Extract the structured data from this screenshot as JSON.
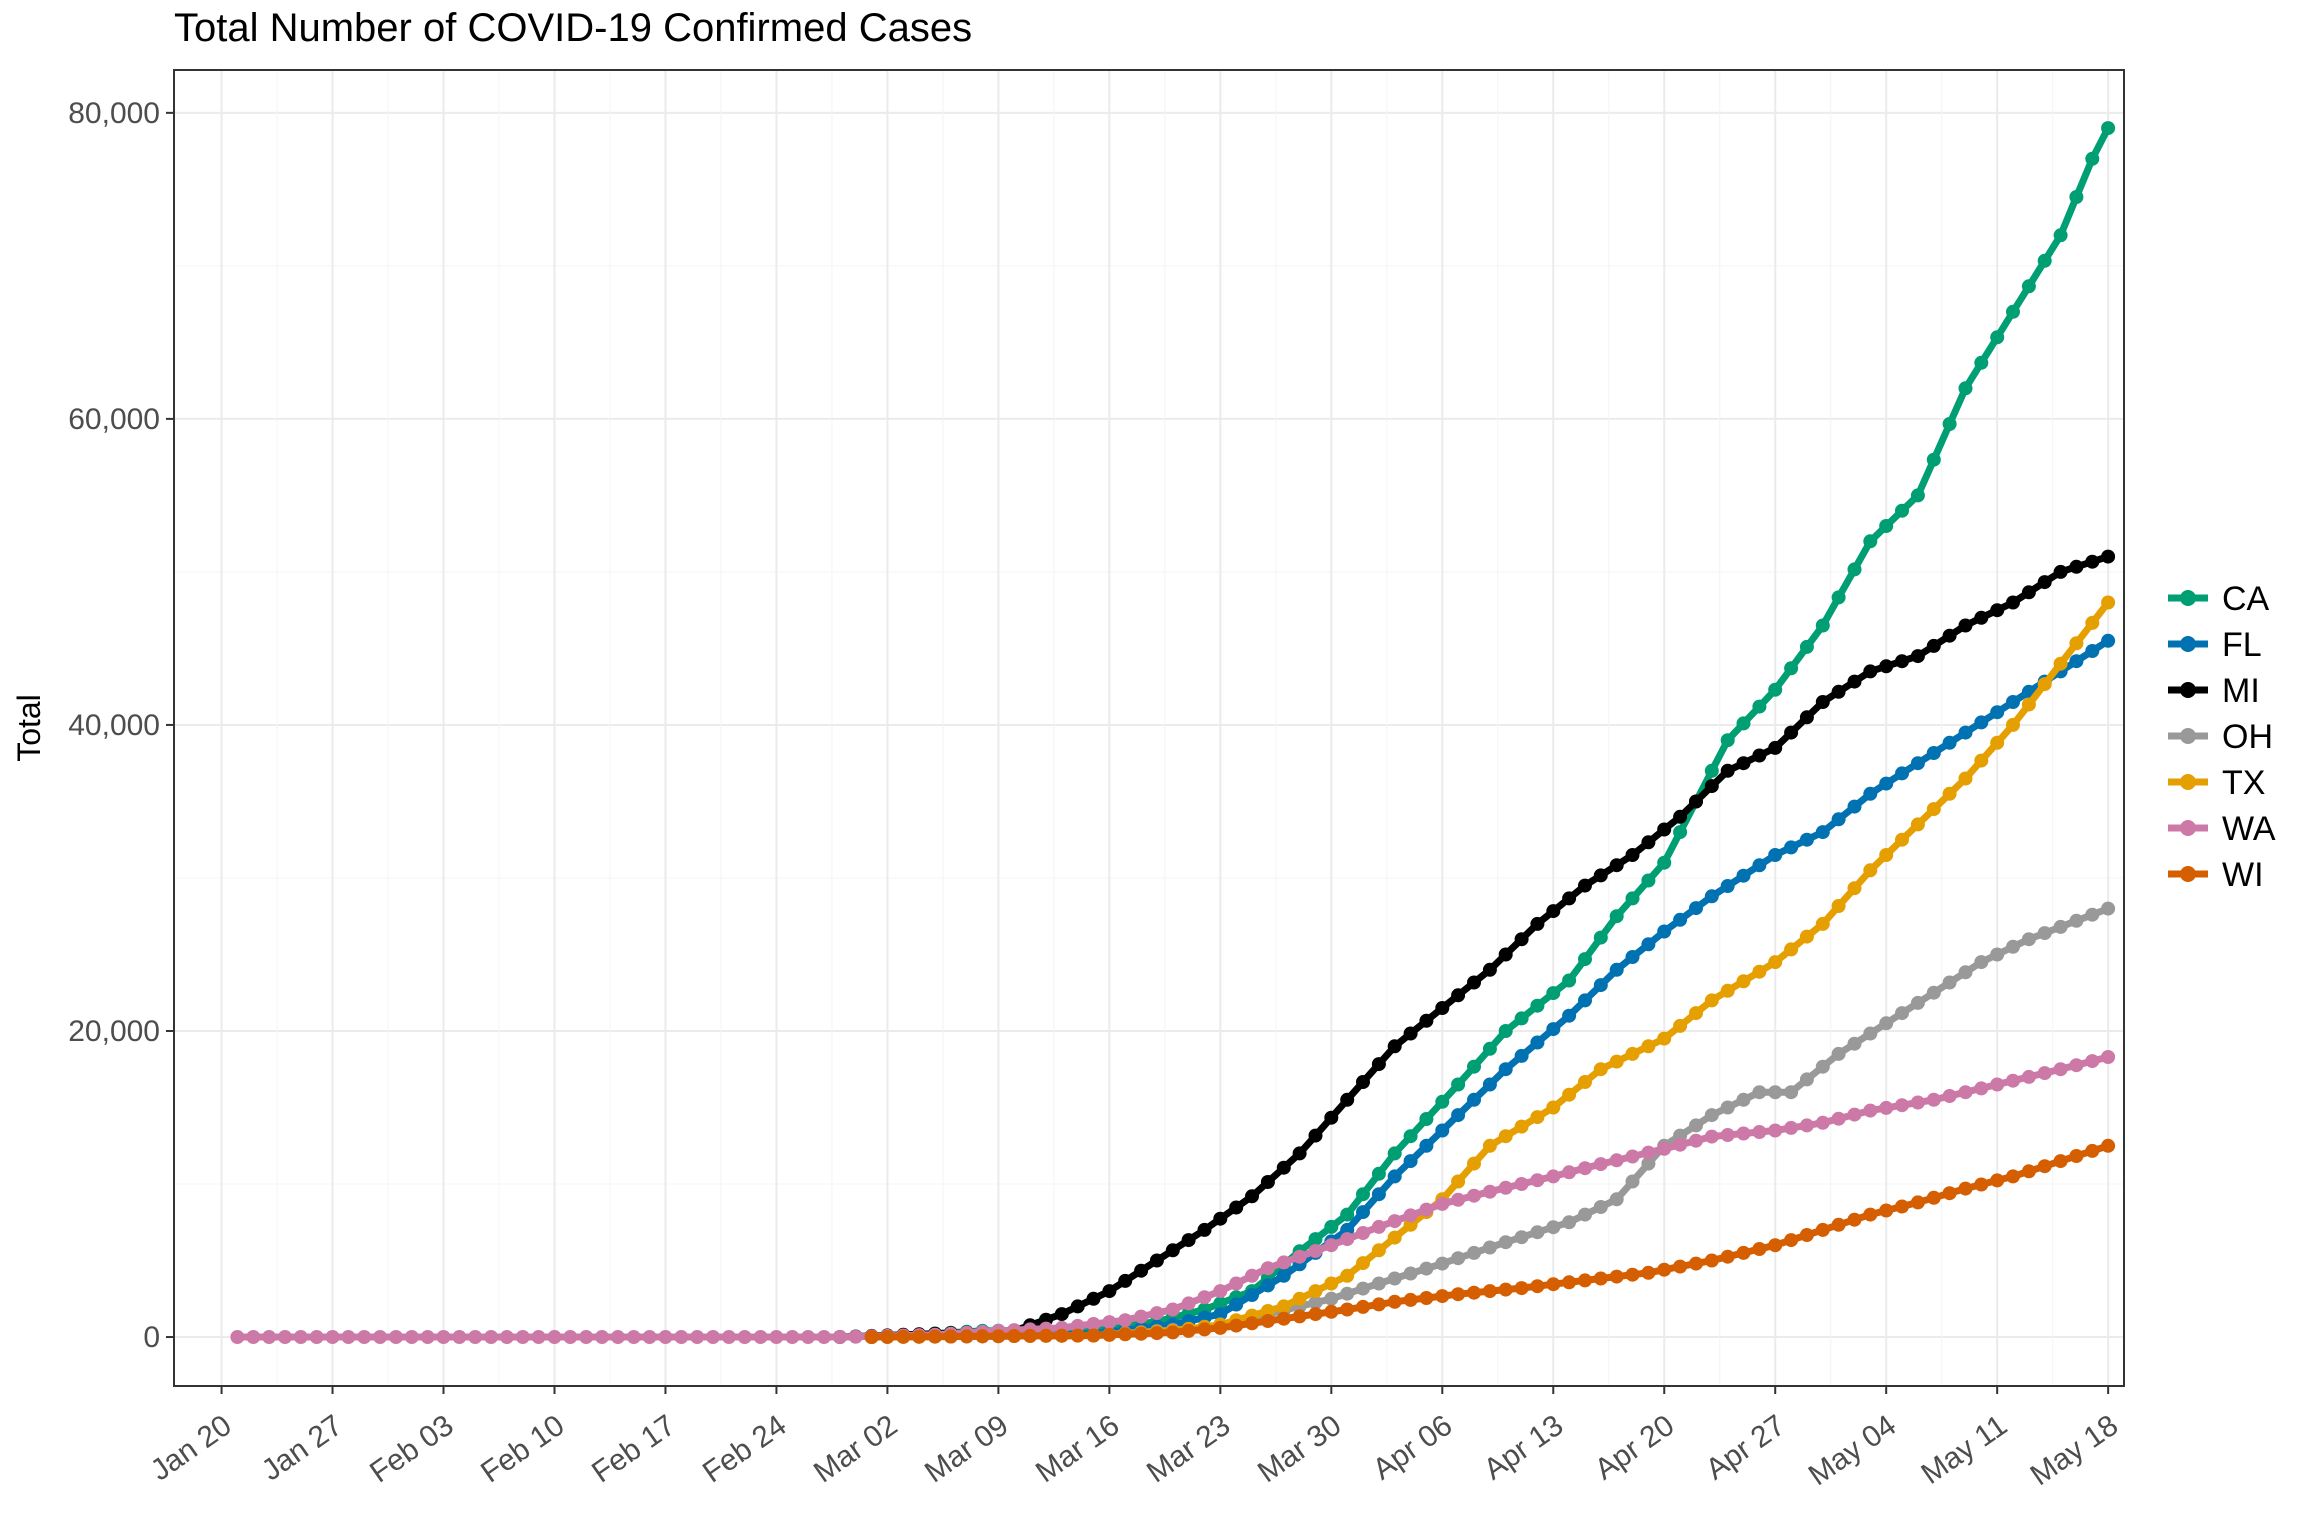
{
  "chart_data": {
    "type": "line",
    "title": "Total Number of COVID-19 Confirmed Cases",
    "xlabel": "",
    "ylabel": "Total",
    "x_type": "date",
    "xlim": [
      "2020-01-17",
      "2020-05-19"
    ],
    "ylim": [
      -3200,
      82800
    ],
    "y_ticks": [
      0,
      20000,
      40000,
      60000,
      80000
    ],
    "y_tick_labels": [
      "0",
      "20,000",
      "40,000",
      "60,000",
      "80,000"
    ],
    "x_ticks": [
      "2020-01-20",
      "2020-01-27",
      "2020-02-03",
      "2020-02-10",
      "2020-02-17",
      "2020-02-24",
      "2020-03-02",
      "2020-03-09",
      "2020-03-16",
      "2020-03-23",
      "2020-03-30",
      "2020-04-06",
      "2020-04-13",
      "2020-04-20",
      "2020-04-27",
      "2020-05-04",
      "2020-05-11",
      "2020-05-18"
    ],
    "x_tick_labels": [
      "Jan 20",
      "Jan 27",
      "Feb 03",
      "Feb 10",
      "Feb 17",
      "Feb 24",
      "Mar 02",
      "Mar 09",
      "Mar 16",
      "Mar 23",
      "Mar 30",
      "Apr 06",
      "Apr 13",
      "Apr 20",
      "Apr 27",
      "May 04",
      "May 11",
      "May 18"
    ],
    "grid": true,
    "legend_position": "right",
    "series": [
      {
        "name": "CA",
        "color": "#009E73",
        "points": [
          [
            "2020-03-01",
            0
          ],
          [
            "2020-03-08",
            400
          ],
          [
            "2020-03-15",
            500
          ],
          [
            "2020-03-19",
            1000
          ],
          [
            "2020-03-22",
            1800
          ],
          [
            "2020-03-25",
            3000
          ],
          [
            "2020-03-28",
            5600
          ],
          [
            "2020-03-31",
            8000
          ],
          [
            "2020-04-03",
            12000
          ],
          [
            "2020-04-07",
            16500
          ],
          [
            "2020-04-10",
            20000
          ],
          [
            "2020-04-14",
            23300
          ],
          [
            "2020-04-17",
            27500
          ],
          [
            "2020-04-20",
            31000
          ],
          [
            "2020-04-22",
            35000
          ],
          [
            "2020-04-24",
            39000
          ],
          [
            "2020-04-27",
            42300
          ],
          [
            "2020-04-30",
            46500
          ],
          [
            "2020-05-03",
            52000
          ],
          [
            "2020-05-06",
            55000
          ],
          [
            "2020-05-09",
            62000
          ],
          [
            "2020-05-12",
            67000
          ],
          [
            "2020-05-15",
            72000
          ],
          [
            "2020-05-17",
            77000
          ],
          [
            "2020-05-18",
            79000
          ]
        ]
      },
      {
        "name": "FL",
        "color": "#0072B2",
        "points": [
          [
            "2020-03-01",
            0
          ],
          [
            "2020-03-08",
            50
          ],
          [
            "2020-03-15",
            200
          ],
          [
            "2020-03-20",
            800
          ],
          [
            "2020-03-23",
            1500
          ],
          [
            "2020-03-27",
            4000
          ],
          [
            "2020-03-31",
            7000
          ],
          [
            "2020-04-03",
            10500
          ],
          [
            "2020-04-07",
            14500
          ],
          [
            "2020-04-10",
            17500
          ],
          [
            "2020-04-14",
            21000
          ],
          [
            "2020-04-17",
            24000
          ],
          [
            "2020-04-20",
            26500
          ],
          [
            "2020-04-23",
            28800
          ],
          [
            "2020-04-27",
            31500
          ],
          [
            "2020-04-30",
            33000
          ],
          [
            "2020-05-03",
            35500
          ],
          [
            "2020-05-06",
            37500
          ],
          [
            "2020-05-09",
            39500
          ],
          [
            "2020-05-12",
            41500
          ],
          [
            "2020-05-15",
            43500
          ],
          [
            "2020-05-18",
            45500
          ]
        ]
      },
      {
        "name": "MI",
        "color": "#000000",
        "points": [
          [
            "2020-02-28",
            0
          ],
          [
            "2020-03-10",
            400
          ],
          [
            "2020-03-13",
            1500
          ],
          [
            "2020-03-16",
            3000
          ],
          [
            "2020-03-19",
            5000
          ],
          [
            "2020-03-22",
            7000
          ],
          [
            "2020-03-25",
            9200
          ],
          [
            "2020-03-28",
            12000
          ],
          [
            "2020-03-31",
            15500
          ],
          [
            "2020-04-03",
            19000
          ],
          [
            "2020-04-06",
            21500
          ],
          [
            "2020-04-09",
            24000
          ],
          [
            "2020-04-12",
            27000
          ],
          [
            "2020-04-15",
            29500
          ],
          [
            "2020-04-18",
            31500
          ],
          [
            "2020-04-21",
            34000
          ],
          [
            "2020-04-24",
            37000
          ],
          [
            "2020-04-27",
            38500
          ],
          [
            "2020-04-30",
            41500
          ],
          [
            "2020-05-03",
            43500
          ],
          [
            "2020-05-06",
            44500
          ],
          [
            "2020-05-09",
            46500
          ],
          [
            "2020-05-12",
            48000
          ],
          [
            "2020-05-15",
            50000
          ],
          [
            "2020-05-18",
            51000
          ]
        ]
      },
      {
        "name": "OH",
        "color": "#999999",
        "points": [
          [
            "2020-03-01",
            0
          ],
          [
            "2020-03-15",
            100
          ],
          [
            "2020-03-22",
            600
          ],
          [
            "2020-03-26",
            1500
          ],
          [
            "2020-03-30",
            2500
          ],
          [
            "2020-04-02",
            3500
          ],
          [
            "2020-04-06",
            4800
          ],
          [
            "2020-04-10",
            6200
          ],
          [
            "2020-04-14",
            7500
          ],
          [
            "2020-04-17",
            9000
          ],
          [
            "2020-04-20",
            12500
          ],
          [
            "2020-04-23",
            14500
          ],
          [
            "2020-04-26",
            16000
          ],
          [
            "2020-04-28",
            16000
          ],
          [
            "2020-05-01",
            18500
          ],
          [
            "2020-05-04",
            20500
          ],
          [
            "2020-05-07",
            22500
          ],
          [
            "2020-05-10",
            24500
          ],
          [
            "2020-05-13",
            26000
          ],
          [
            "2020-05-18",
            28000
          ]
        ]
      },
      {
        "name": "TX",
        "color": "#E69F00",
        "points": [
          [
            "2020-03-01",
            0
          ],
          [
            "2020-03-15",
            100
          ],
          [
            "2020-03-20",
            400
          ],
          [
            "2020-03-23",
            800
          ],
          [
            "2020-03-27",
            2000
          ],
          [
            "2020-03-31",
            4000
          ],
          [
            "2020-04-03",
            6500
          ],
          [
            "2020-04-06",
            9000
          ],
          [
            "2020-04-09",
            12500
          ],
          [
            "2020-04-13",
            15000
          ],
          [
            "2020-04-16",
            17500
          ],
          [
            "2020-04-20",
            19500
          ],
          [
            "2020-04-23",
            22000
          ],
          [
            "2020-04-27",
            24500
          ],
          [
            "2020-04-30",
            27000
          ],
          [
            "2020-05-03",
            30500
          ],
          [
            "2020-05-06",
            33500
          ],
          [
            "2020-05-09",
            36500
          ],
          [
            "2020-05-12",
            40000
          ],
          [
            "2020-05-15",
            44000
          ],
          [
            "2020-05-18",
            48000
          ]
        ]
      },
      {
        "name": "WA",
        "color": "#CC79A7",
        "points": [
          [
            "2020-01-21",
            0
          ],
          [
            "2020-02-28",
            0
          ],
          [
            "2020-03-05",
            150
          ],
          [
            "2020-03-09",
            400
          ],
          [
            "2020-03-13",
            600
          ],
          [
            "2020-03-17",
            1100
          ],
          [
            "2020-03-20",
            1800
          ],
          [
            "2020-03-23",
            3000
          ],
          [
            "2020-03-26",
            4500
          ],
          [
            "2020-03-30",
            6000
          ],
          [
            "2020-04-02",
            7200
          ],
          [
            "2020-04-06",
            8700
          ],
          [
            "2020-04-09",
            9500
          ],
          [
            "2020-04-13",
            10500
          ],
          [
            "2020-04-16",
            11300
          ],
          [
            "2020-04-20",
            12300
          ],
          [
            "2020-04-23",
            13100
          ],
          [
            "2020-04-27",
            13500
          ],
          [
            "2020-04-30",
            14000
          ],
          [
            "2020-05-03",
            14800
          ],
          [
            "2020-05-07",
            15500
          ],
          [
            "2020-05-11",
            16500
          ],
          [
            "2020-05-15",
            17500
          ],
          [
            "2020-05-18",
            18300
          ]
        ]
      },
      {
        "name": "WI",
        "color": "#D55E00",
        "points": [
          [
            "2020-03-01",
            0
          ],
          [
            "2020-03-15",
            100
          ],
          [
            "2020-03-20",
            300
          ],
          [
            "2020-03-23",
            600
          ],
          [
            "2020-03-27",
            1200
          ],
          [
            "2020-03-31",
            1800
          ],
          [
            "2020-04-03",
            2300
          ],
          [
            "2020-04-07",
            2800
          ],
          [
            "2020-04-11",
            3200
          ],
          [
            "2020-04-15",
            3700
          ],
          [
            "2020-04-19",
            4200
          ],
          [
            "2020-04-23",
            5000
          ],
          [
            "2020-04-27",
            6000
          ],
          [
            "2020-04-30",
            7000
          ],
          [
            "2020-05-03",
            8000
          ],
          [
            "2020-05-06",
            8800
          ],
          [
            "2020-05-09",
            9700
          ],
          [
            "2020-05-12",
            10500
          ],
          [
            "2020-05-15",
            11500
          ],
          [
            "2020-05-18",
            12500
          ]
        ]
      }
    ]
  }
}
